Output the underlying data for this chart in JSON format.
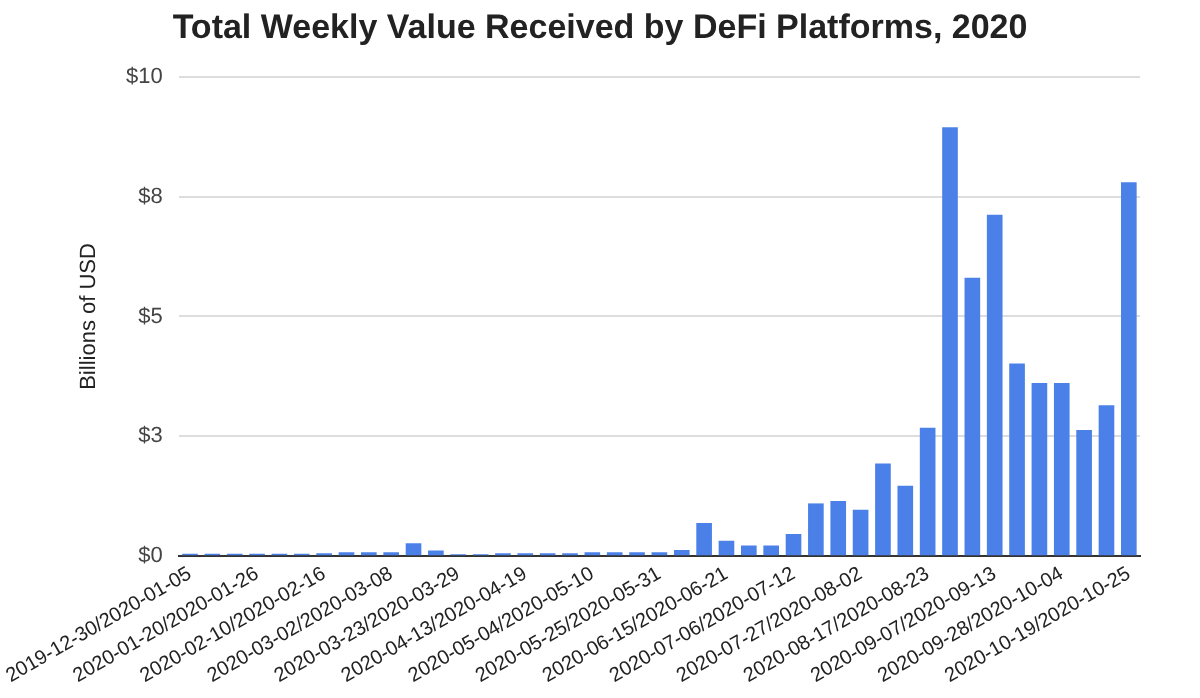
{
  "chart_data": {
    "type": "bar",
    "title": "Total Weekly Value Received by DeFi Platforms, 2020",
    "ylabel": "Billions of USD",
    "categories": [
      "2019-12-30/2020-01-05",
      null,
      null,
      "2020-01-20/2020-01-26",
      null,
      null,
      "2020-02-10/2020-02-16",
      null,
      null,
      "2020-03-02/2020-03-08",
      null,
      null,
      "2020-03-23/2020-03-29",
      null,
      null,
      "2020-04-13/2020-04-19",
      null,
      null,
      "2020-05-04/2020-05-10",
      null,
      null,
      "2020-05-25/2020-05-31",
      null,
      null,
      "2020-06-15/2020-06-21",
      null,
      null,
      "2020-07-06/2020-07-12",
      null,
      null,
      "2020-07-27/2020-08-02",
      null,
      null,
      "2020-08-17/2020-08-23",
      null,
      null,
      "2020-09-07/2020-09-13",
      null,
      null,
      "2020-09-28/2020-10-04",
      null,
      null,
      "2020-10-19/2020-10-25"
    ],
    "values": [
      0.05,
      0.05,
      0.05,
      0.05,
      0.05,
      0.05,
      0.06,
      0.08,
      0.08,
      0.08,
      0.27,
      0.12,
      0.04,
      0.04,
      0.06,
      0.06,
      0.06,
      0.06,
      0.08,
      0.08,
      0.08,
      0.08,
      0.13,
      0.69,
      0.32,
      0.22,
      0.22,
      0.46,
      1.1,
      1.15,
      0.97,
      1.93,
      1.47,
      2.68,
      8.95,
      5.81,
      7.12,
      4.02,
      3.61,
      3.61,
      2.63,
      3.15,
      7.8
    ],
    "color": "#4a80e8",
    "ylim": [
      0,
      10
    ],
    "yticks": [
      {
        "value": 0,
        "label": "$0"
      },
      {
        "value": 2.5,
        "label": "$3"
      },
      {
        "value": 5,
        "label": "$5"
      },
      {
        "value": 7.5,
        "label": "$8"
      },
      {
        "value": 10,
        "label": "$10"
      }
    ],
    "grid": "y"
  }
}
